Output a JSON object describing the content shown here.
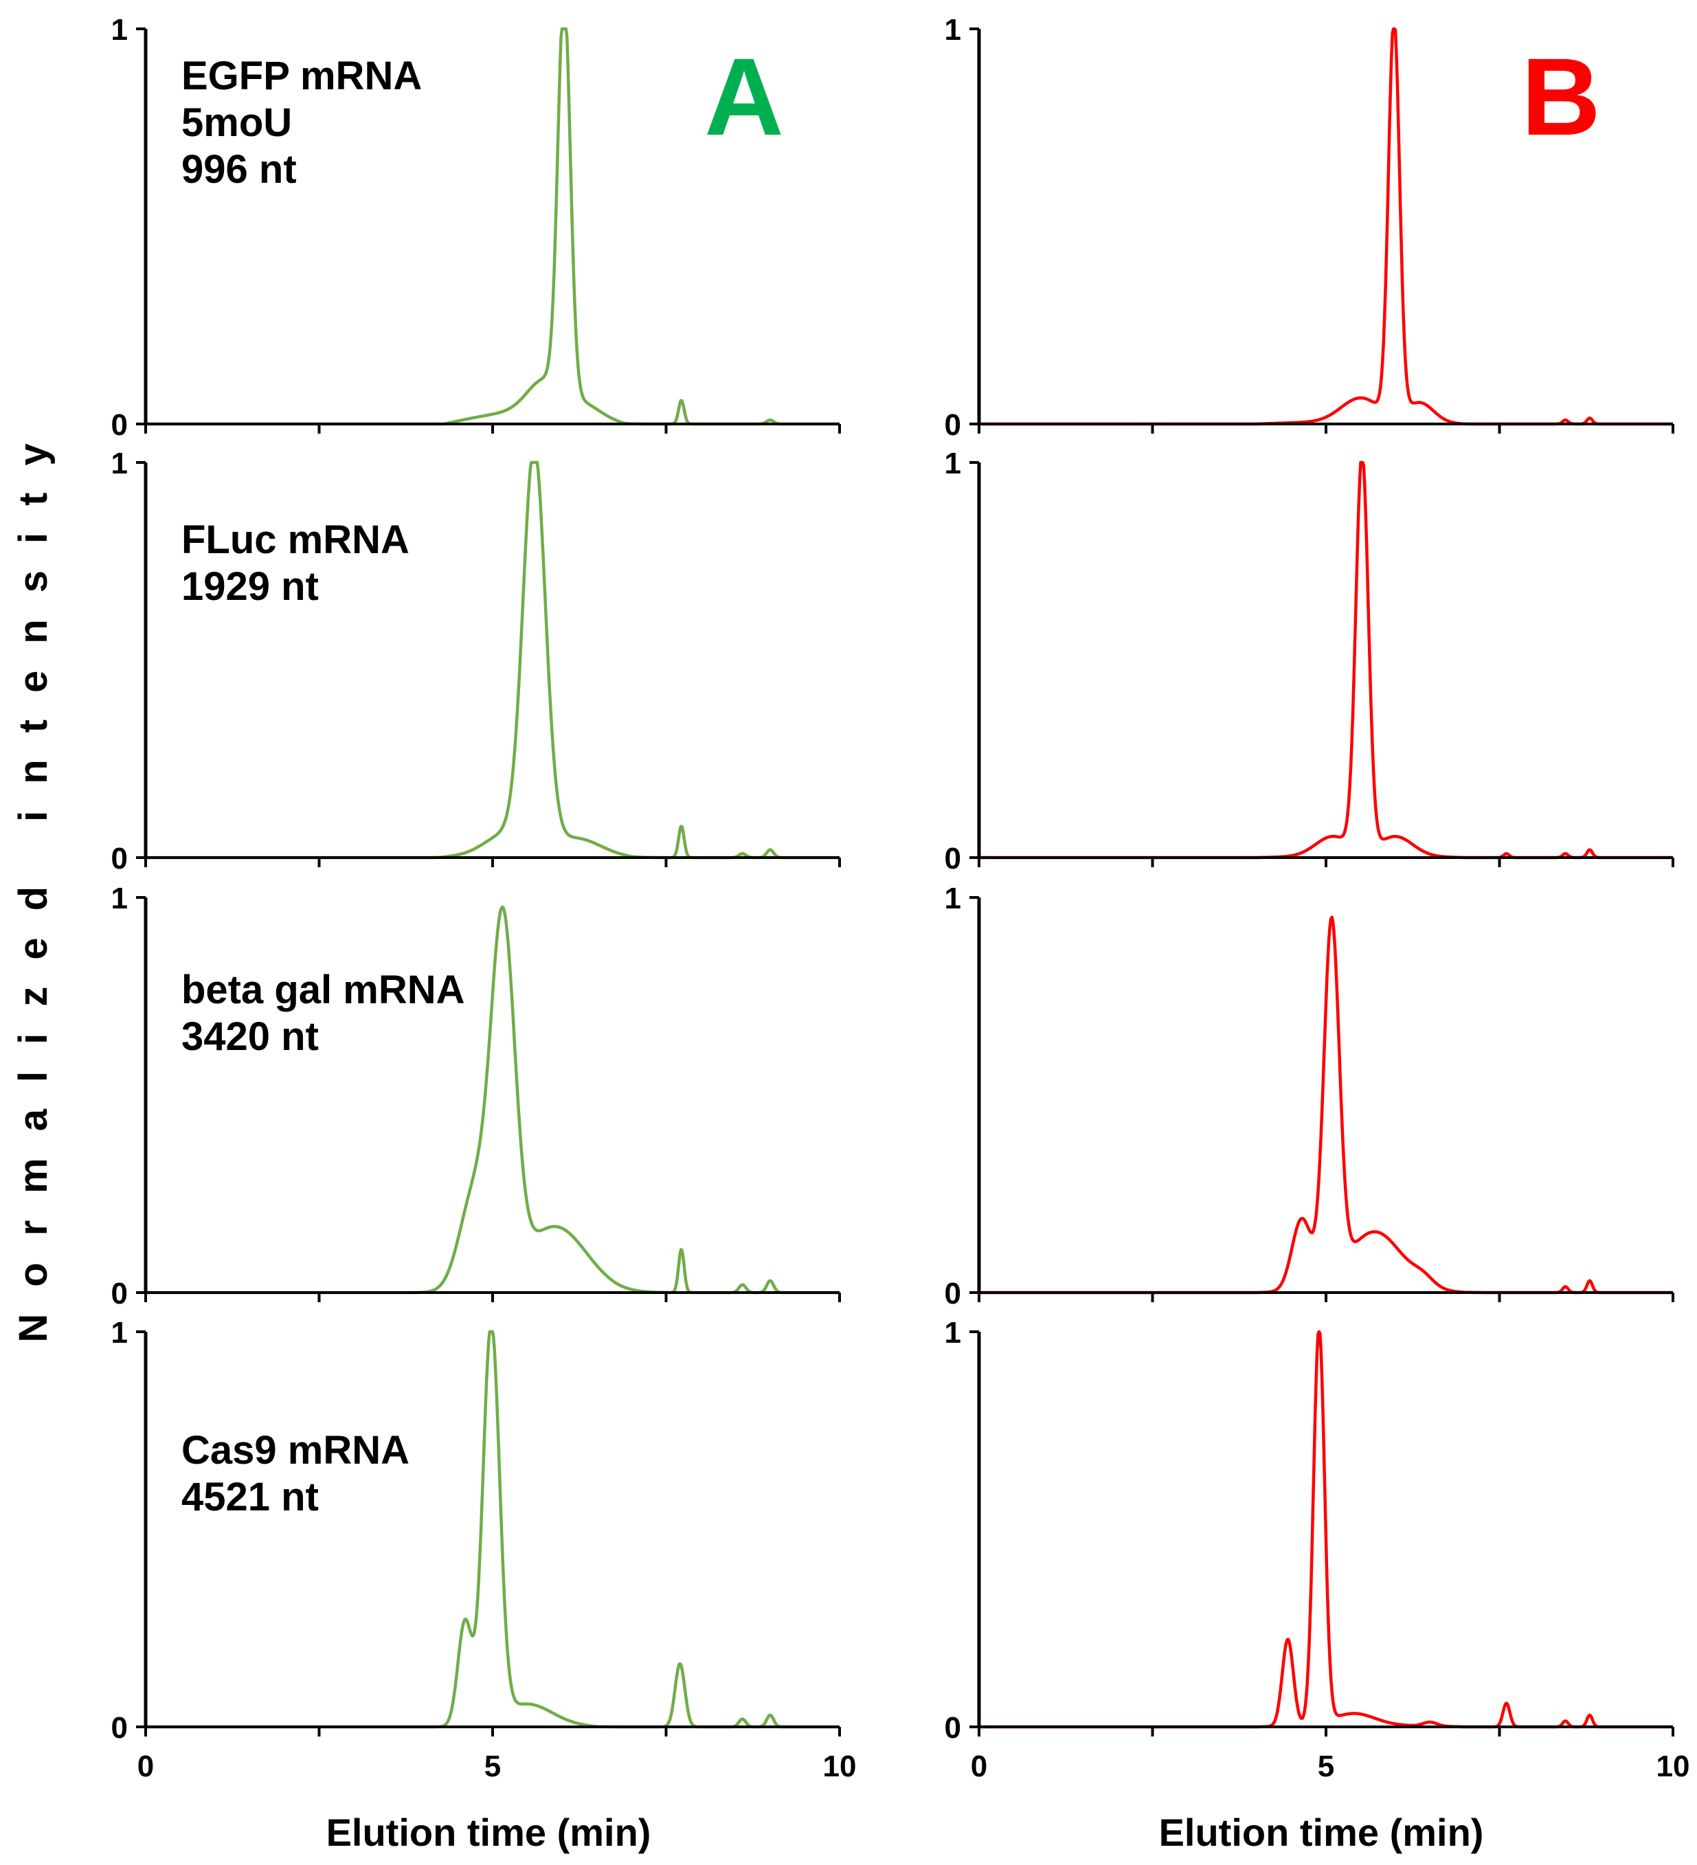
{
  "figure": {
    "y_axis_label": "Normalized intensity",
    "x_axis_label_left": "Elution time (min)",
    "x_axis_label_right": "Elution time (min)",
    "panel_labels": [
      {
        "text": "A",
        "color": "#00b050"
      },
      {
        "text": "B",
        "color": "#ff0000"
      }
    ],
    "series_colors": {
      "A": "#70ad47",
      "B": "#ff0000"
    },
    "axis_color": "#000000"
  },
  "chart_data": [
    {
      "type": "line",
      "column": "A",
      "row": 0,
      "annotation": [
        "EGFP mRNA",
        "5moU",
        "996 nt"
      ],
      "xlim": [
        0,
        10
      ],
      "ylim": [
        0,
        1
      ],
      "xticks": [
        "0",
        "5",
        "10"
      ],
      "yticks": [
        "0",
        "1"
      ],
      "peaks": [
        {
          "x": 6.03,
          "y": 1.0,
          "w": 0.09
        },
        {
          "x": 5.75,
          "y": 0.08,
          "w": 0.25
        },
        {
          "x": 6.3,
          "y": 0.03,
          "w": 0.25
        },
        {
          "x": 7.72,
          "y": 0.06,
          "w": 0.04
        },
        {
          "x": 9.0,
          "y": 0.01,
          "w": 0.05
        }
      ],
      "baseline_rise": {
        "start": 4.3,
        "end": 6.9,
        "level": 0.08
      }
    },
    {
      "type": "line",
      "column": "A",
      "row": 1,
      "annotation": [
        "FLuc mRNA",
        "1929 nt"
      ],
      "xlim": [
        0,
        10
      ],
      "ylim": [
        0,
        1
      ],
      "xticks": [
        "0",
        "5",
        "10"
      ],
      "yticks": [
        "0",
        "1"
      ],
      "peaks": [
        {
          "x": 5.6,
          "y": 1.0,
          "w": 0.16
        },
        {
          "x": 5.2,
          "y": 0.05,
          "w": 0.3
        },
        {
          "x": 6.2,
          "y": 0.04,
          "w": 0.35
        },
        {
          "x": 7.72,
          "y": 0.08,
          "w": 0.04
        },
        {
          "x": 8.6,
          "y": 0.01,
          "w": 0.05
        },
        {
          "x": 9.0,
          "y": 0.02,
          "w": 0.05
        }
      ],
      "baseline_rise": {
        "start": 4.2,
        "end": 7.0,
        "level": 0.03
      }
    },
    {
      "type": "line",
      "column": "A",
      "row": 2,
      "annotation": [
        "beta gal mRNA",
        "3420 nt"
      ],
      "xlim": [
        0,
        10
      ],
      "ylim": [
        0,
        1
      ],
      "xticks": [
        "0",
        "5",
        "10"
      ],
      "yticks": [
        "0",
        "1"
      ],
      "peaks": [
        {
          "x": 5.15,
          "y": 0.88,
          "w": 0.17
        },
        {
          "x": 4.75,
          "y": 0.25,
          "w": 0.22
        },
        {
          "x": 5.9,
          "y": 0.16,
          "w": 0.45
        },
        {
          "x": 7.72,
          "y": 0.11,
          "w": 0.04
        },
        {
          "x": 8.6,
          "y": 0.02,
          "w": 0.05
        },
        {
          "x": 9.0,
          "y": 0.03,
          "w": 0.05
        }
      ],
      "baseline_rise": {
        "start": 4.3,
        "end": 6.8,
        "level": 0.02
      }
    },
    {
      "type": "line",
      "column": "A",
      "row": 3,
      "annotation": [
        "Cas9 mRNA",
        "4521 nt"
      ],
      "xlim": [
        0,
        10
      ],
      "ylim": [
        0,
        1
      ],
      "xticks": [
        "0",
        "5",
        "10"
      ],
      "yticks": [
        "0",
        "1"
      ],
      "peaks": [
        {
          "x": 4.98,
          "y": 1.0,
          "w": 0.12
        },
        {
          "x": 4.6,
          "y": 0.26,
          "w": 0.1
        },
        {
          "x": 5.5,
          "y": 0.05,
          "w": 0.35
        },
        {
          "x": 7.7,
          "y": 0.16,
          "w": 0.07
        },
        {
          "x": 8.6,
          "y": 0.02,
          "w": 0.05
        },
        {
          "x": 9.0,
          "y": 0.03,
          "w": 0.05
        }
      ],
      "baseline_rise": {
        "start": 4.3,
        "end": 6.5,
        "level": 0.02
      }
    },
    {
      "type": "line",
      "column": "B",
      "row": 0,
      "annotation": [],
      "xlim": [
        0,
        10
      ],
      "ylim": [
        0,
        1
      ],
      "xticks": [
        "0",
        "5",
        "10"
      ],
      "yticks": [
        "0",
        "1"
      ],
      "peaks": [
        {
          "x": 5.98,
          "y": 1.0,
          "w": 0.08
        },
        {
          "x": 5.5,
          "y": 0.06,
          "w": 0.28
        },
        {
          "x": 6.35,
          "y": 0.05,
          "w": 0.2
        },
        {
          "x": 8.45,
          "y": 0.01,
          "w": 0.04
        },
        {
          "x": 8.8,
          "y": 0.015,
          "w": 0.04
        }
      ],
      "baseline_rise": {
        "start": 4.0,
        "end": 7.0,
        "level": 0.015
      }
    },
    {
      "type": "line",
      "column": "B",
      "row": 1,
      "annotation": [],
      "xlim": [
        0,
        10
      ],
      "ylim": [
        0,
        1
      ],
      "xticks": [
        "0",
        "5",
        "10"
      ],
      "yticks": [
        "0",
        "1"
      ],
      "peaks": [
        {
          "x": 5.52,
          "y": 1.0,
          "w": 0.09
        },
        {
          "x": 5.1,
          "y": 0.05,
          "w": 0.25
        },
        {
          "x": 6.0,
          "y": 0.05,
          "w": 0.25
        },
        {
          "x": 7.6,
          "y": 0.01,
          "w": 0.04
        },
        {
          "x": 8.45,
          "y": 0.01,
          "w": 0.04
        },
        {
          "x": 8.8,
          "y": 0.02,
          "w": 0.04
        }
      ],
      "baseline_rise": {
        "start": 4.0,
        "end": 7.0,
        "level": 0.01
      }
    },
    {
      "type": "line",
      "column": "B",
      "row": 2,
      "annotation": [],
      "xlim": [
        0,
        10
      ],
      "ylim": [
        0,
        1
      ],
      "xticks": [
        "0",
        "5",
        "10"
      ],
      "yticks": [
        "0",
        "1"
      ],
      "peaks": [
        {
          "x": 5.08,
          "y": 0.9,
          "w": 0.11
        },
        {
          "x": 4.65,
          "y": 0.18,
          "w": 0.14
        },
        {
          "x": 5.7,
          "y": 0.15,
          "w": 0.4
        },
        {
          "x": 6.4,
          "y": 0.02,
          "w": 0.15
        },
        {
          "x": 8.45,
          "y": 0.015,
          "w": 0.04
        },
        {
          "x": 8.8,
          "y": 0.03,
          "w": 0.04
        }
      ],
      "baseline_rise": {
        "start": 4.0,
        "end": 7.0,
        "level": 0.01
      }
    },
    {
      "type": "line",
      "column": "B",
      "row": 3,
      "annotation": [],
      "xlim": [
        0,
        10
      ],
      "ylim": [
        0,
        1
      ],
      "xticks": [
        "0",
        "5",
        "10"
      ],
      "yticks": [
        "0",
        "1"
      ],
      "peaks": [
        {
          "x": 4.9,
          "y": 1.0,
          "w": 0.08
        },
        {
          "x": 4.45,
          "y": 0.22,
          "w": 0.08
        },
        {
          "x": 5.4,
          "y": 0.03,
          "w": 0.3
        },
        {
          "x": 6.5,
          "y": 0.01,
          "w": 0.1
        },
        {
          "x": 7.6,
          "y": 0.06,
          "w": 0.05
        },
        {
          "x": 8.45,
          "y": 0.015,
          "w": 0.04
        },
        {
          "x": 8.8,
          "y": 0.03,
          "w": 0.04
        }
      ],
      "baseline_rise": {
        "start": 4.0,
        "end": 7.0,
        "level": 0.01
      }
    }
  ]
}
